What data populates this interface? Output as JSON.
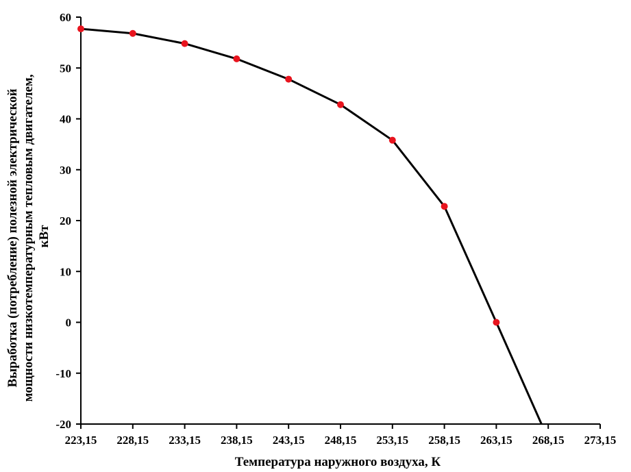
{
  "chart_data": {
    "type": "line",
    "title": "",
    "xlabel": "Температура наружного воздуха, К",
    "ylabel_lines": [
      "Выработка (потребление) полезной электрической",
      "мощности низкотемпературным тепловым двигателем,",
      "кВт"
    ],
    "xlim": [
      223.15,
      273.15
    ],
    "ylim": [
      -20,
      60
    ],
    "x_ticks": [
      "223,15",
      "228,15",
      "233,15",
      "238,15",
      "243,15",
      "248,15",
      "253,15",
      "258,15",
      "263,15",
      "268,15",
      "273,15"
    ],
    "y_ticks": [
      "-20",
      "-10",
      "0",
      "10",
      "20",
      "30",
      "40",
      "50",
      "60"
    ],
    "grid": false,
    "legend": "none",
    "line_color": "#000000",
    "marker_color": "#e8141e",
    "series": [
      {
        "x": [
          223.15,
          228.15,
          233.15,
          238.15,
          243.15,
          248.15,
          253.15,
          258.15,
          263.15
        ],
        "y": [
          57.7,
          56.8,
          54.8,
          51.8,
          47.8,
          42.8,
          35.8,
          22.8,
          0
        ],
        "markers": true
      },
      {
        "x": [
          263.15,
          267.5
        ],
        "y": [
          0,
          -20
        ],
        "markers": false
      }
    ]
  }
}
